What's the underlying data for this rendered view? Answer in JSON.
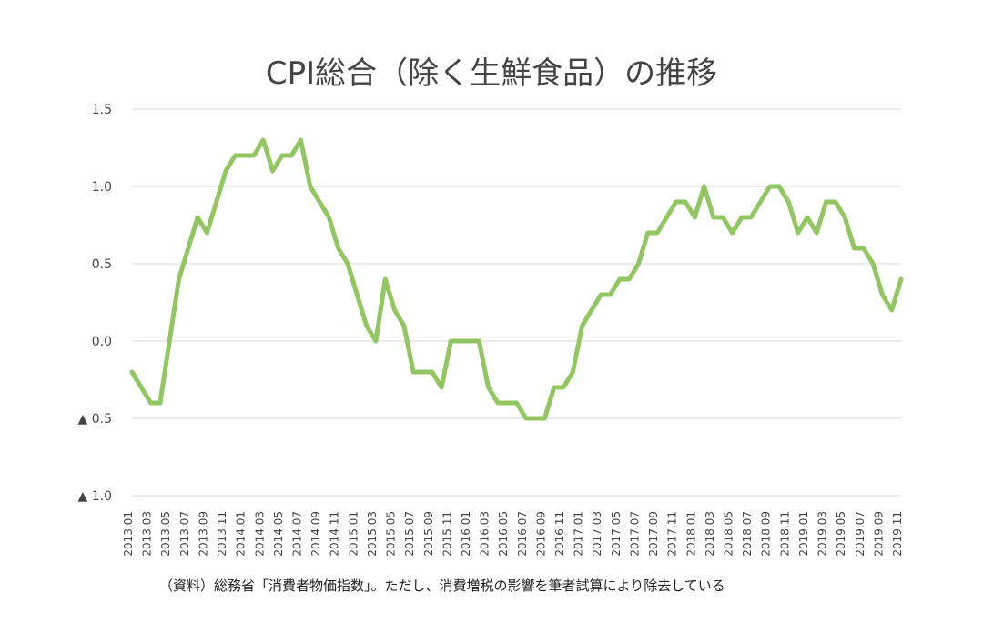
{
  "chart_data": {
    "type": "line",
    "title": "CPI総合（除く生鮮食品）の推移",
    "xlabel": "",
    "ylabel": "",
    "ylim": [
      -1.0,
      1.5
    ],
    "y_ticks": [
      {
        "value": 1.5,
        "label": "1.5"
      },
      {
        "value": 1.0,
        "label": "1.0"
      },
      {
        "value": 0.5,
        "label": "0.5"
      },
      {
        "value": 0.0,
        "label": "0.0"
      },
      {
        "value": -0.5,
        "label": "▲ 0.5"
      },
      {
        "value": -1.0,
        "label": "▲ 1.0"
      }
    ],
    "grid": true,
    "x": [
      "2013.01",
      "2013.02",
      "2013.03",
      "2013.04",
      "2013.05",
      "2013.06",
      "2013.07",
      "2013.08",
      "2013.09",
      "2013.10",
      "2013.11",
      "2013.12",
      "2014.01",
      "2014.02",
      "2014.03",
      "2014.04",
      "2014.05",
      "2014.06",
      "2014.07",
      "2014.08",
      "2014.09",
      "2014.10",
      "2014.11",
      "2014.12",
      "2015.01",
      "2015.02",
      "2015.03",
      "2015.04",
      "2015.05",
      "2015.06",
      "2015.07",
      "2015.08",
      "2015.09",
      "2015.10",
      "2015.11",
      "2015.12",
      "2016.01",
      "2016.02",
      "2016.03",
      "2016.04",
      "2016.05",
      "2016.06",
      "2016.07",
      "2016.08",
      "2016.09",
      "2016.10",
      "2016.11",
      "2016.12",
      "2017.01",
      "2017.02",
      "2017.03",
      "2017.04",
      "2017.05",
      "2017.06",
      "2017.07",
      "2017.08",
      "2017.09",
      "2017.10",
      "2017.11",
      "2017.12",
      "2018.01",
      "2018.02",
      "2018.03",
      "2018.04",
      "2018.05",
      "2018.06",
      "2018.07",
      "2018.08",
      "2018.09",
      "2018.10",
      "2018.11",
      "2018.12",
      "2019.01",
      "2019.02",
      "2019.03",
      "2019.04",
      "2019.05",
      "2019.06",
      "2019.07",
      "2019.08",
      "2019.09",
      "2019.10",
      "2019.11"
    ],
    "x_tick_labels": [
      "2013.01",
      "2013.03",
      "2013.05",
      "2013.07",
      "2013.09",
      "2013.11",
      "2014.01",
      "2014.03",
      "2014.05",
      "2014.07",
      "2014.09",
      "2014.11",
      "2015.01",
      "2015.03",
      "2015.05",
      "2015.07",
      "2015.09",
      "2015.11",
      "2016.01",
      "2016.03",
      "2016.05",
      "2016.07",
      "2016.09",
      "2016.11",
      "2017.01",
      "2017.03",
      "2017.05",
      "2017.07",
      "2017.09",
      "2017.11",
      "2018.01",
      "2018.03",
      "2018.05",
      "2018.07",
      "2018.09",
      "2018.11",
      "2019.01",
      "2019.03",
      "2019.05",
      "2019.07",
      "2019.09",
      "2019.11"
    ],
    "series": [
      {
        "values": [
          -0.2,
          -0.3,
          -0.4,
          -0.4,
          0.0,
          0.4,
          0.6,
          0.8,
          0.7,
          0.9,
          1.1,
          1.2,
          1.2,
          1.2,
          1.3,
          1.1,
          1.2,
          1.2,
          1.3,
          1.0,
          0.9,
          0.8,
          0.6,
          0.5,
          0.3,
          0.1,
          0.0,
          0.4,
          0.2,
          0.1,
          -0.2,
          -0.2,
          -0.2,
          -0.3,
          0.0,
          0.0,
          0.0,
          0.0,
          -0.3,
          -0.4,
          -0.4,
          -0.4,
          -0.5,
          -0.5,
          -0.5,
          -0.3,
          -0.3,
          -0.2,
          0.1,
          0.2,
          0.3,
          0.3,
          0.4,
          0.4,
          0.5,
          0.7,
          0.7,
          0.8,
          0.9,
          0.9,
          0.8,
          1.0,
          0.8,
          0.8,
          0.7,
          0.8,
          0.8,
          0.9,
          1.0,
          1.0,
          0.9,
          0.7,
          0.8,
          0.7,
          0.9,
          0.9,
          0.8,
          0.6,
          0.6,
          0.5,
          0.3,
          0.2,
          0.4
        ]
      }
    ],
    "colors": {
      "line": "#91c661",
      "grid": "#d9d9d9",
      "text": "#444444"
    },
    "annotations": [
      "（資料）総務省「消費者物価指数」。ただし、消費増税の影響を筆者試算により除去している"
    ]
  }
}
